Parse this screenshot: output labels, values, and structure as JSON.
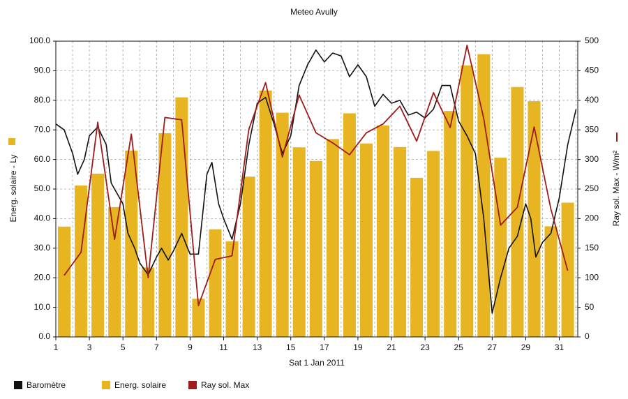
{
  "chart_data": {
    "type": "combo",
    "title": "Meteo  Avully",
    "x_label": "Sat 1 Jan 2011",
    "y_label": "Energ. solaire - Ly",
    "y2_label": "Ray sol. Max - W/m²",
    "xlim": [
      1,
      32.1
    ],
    "xticks": [
      1,
      3,
      5,
      7,
      9,
      11,
      13,
      15,
      17,
      19,
      21,
      23,
      25,
      27,
      29,
      31
    ],
    "ylim": [
      0,
      100
    ],
    "yticks": [
      {
        "value": 0,
        "label": "0.0"
      },
      {
        "value": 10,
        "label": "10.0"
      },
      {
        "value": 20,
        "label": "20.0"
      },
      {
        "value": 30,
        "label": "30.0"
      },
      {
        "value": 40,
        "label": "40.0"
      },
      {
        "value": 50,
        "label": "50.0"
      },
      {
        "value": 60,
        "label": "60.0"
      },
      {
        "value": 70,
        "label": "70.0"
      },
      {
        "value": 80,
        "label": "80.0"
      },
      {
        "value": 90,
        "label": "90.0"
      },
      {
        "value": 100,
        "label": "100.0"
      }
    ],
    "y2lim": [
      0,
      500
    ],
    "y2ticks": [
      0,
      50,
      100,
      150,
      200,
      250,
      300,
      350,
      400,
      450,
      500
    ],
    "grid": true,
    "legend": "bottom",
    "series": [
      {
        "name": "Baromètre",
        "type": "line",
        "color": "#111111",
        "x": [
          1,
          1.5,
          2,
          2.3,
          2.7,
          3,
          3.5,
          4,
          4.3,
          4.7,
          5,
          5.3,
          5.7,
          6,
          6.5,
          7,
          7.3,
          7.7,
          8,
          8.5,
          9,
          9.5,
          10,
          10.3,
          10.7,
          11,
          11.5,
          12,
          12.5,
          13,
          13.5,
          14,
          14.5,
          15,
          15.5,
          16,
          16.5,
          17,
          17.5,
          18,
          18.5,
          19,
          19.5,
          20,
          20.5,
          21,
          21.5,
          22,
          22.5,
          23,
          23.5,
          24,
          24.5,
          25,
          25.5,
          26,
          26.5,
          27,
          27.5,
          28,
          28.5,
          29,
          29.3,
          29.6,
          30,
          30.5,
          31,
          31.5,
          32
        ],
        "values": [
          72,
          70,
          62,
          55,
          60,
          68,
          71,
          65,
          52,
          48,
          45,
          35,
          30,
          25,
          21,
          27,
          30,
          26,
          29,
          35,
          28,
          28,
          55,
          59,
          45,
          40,
          33,
          45,
          65,
          79,
          81,
          72,
          62,
          68,
          85,
          92,
          97,
          93,
          96,
          95,
          88,
          92,
          88,
          78,
          82,
          79,
          80,
          75,
          76,
          74,
          77,
          85,
          85,
          73,
          68,
          62,
          40,
          8,
          20,
          30,
          34,
          45,
          40,
          27,
          32,
          35,
          47,
          65,
          77
        ]
      },
      {
        "name": "Energ. solaire",
        "type": "bar",
        "color": "#e8b522",
        "x": [
          1.5,
          2.5,
          3.5,
          4.5,
          5.5,
          6.5,
          7.5,
          8.5,
          9.5,
          10.5,
          11.5,
          12.5,
          13.5,
          14.5,
          15.5,
          16.5,
          17.5,
          18.5,
          19.5,
          20.5,
          21.5,
          22.5,
          23.5,
          24.5,
          25.5,
          26.5,
          27.5,
          28.5,
          29.5,
          30.5,
          31.5
        ],
        "values": [
          37.3,
          51.2,
          55.2,
          43.9,
          63.0,
          23.5,
          68.9,
          81.0,
          12.9,
          36.4,
          32.3,
          54.2,
          83.3,
          75.8,
          64.1,
          59.5,
          66.9,
          75.6,
          65.4,
          71.5,
          64.2,
          53.8,
          62.9,
          76.4,
          91.8,
          95.6,
          60.6,
          84.5,
          79.7,
          37.4,
          45.4
        ]
      },
      {
        "name": "Ray sol. Max",
        "type": "line",
        "axis": "y2",
        "color": "#9e1c1c",
        "x": [
          1.5,
          2.5,
          3.5,
          4.5,
          5.5,
          6.5,
          7.5,
          8.5,
          9.5,
          10.5,
          11.5,
          12.5,
          13.5,
          14.5,
          15.5,
          16.5,
          17.5,
          18.5,
          19.5,
          20.5,
          21.5,
          22.5,
          23.5,
          24.5,
          25.5,
          26.5,
          27.5,
          28.5,
          29.5,
          30.5,
          31.5
        ],
        "values": [
          104,
          143,
          363,
          165,
          343,
          100,
          371,
          367,
          53,
          131,
          137,
          351,
          430,
          304,
          409,
          345,
          328,
          308,
          345,
          360,
          390,
          331,
          413,
          354,
          493,
          369,
          189,
          219,
          355,
          216,
          112
        ]
      }
    ]
  }
}
